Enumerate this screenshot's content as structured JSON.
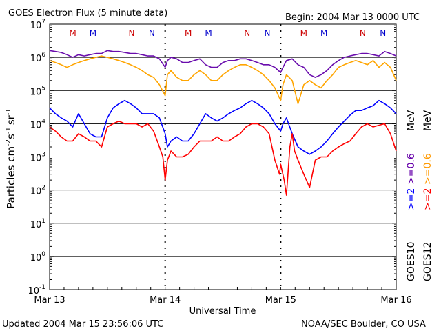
{
  "chart_data": {
    "type": "line",
    "title": "GOES Electron Flux (5 minute data)",
    "begin_label": "Begin: 2004 Mar 13 0000 UTC",
    "xlabel": "Universal Time",
    "ylabel_parts": {
      "base": "Particles cm",
      "e1": "-2",
      "mid1": "s",
      "e2": "-1",
      "mid2": "sr",
      "e3": "-1"
    },
    "updated": "Updated 2004 Mar 15 23:56:06 UTC",
    "credit": "NOAA/SEC Boulder, CO USA",
    "x_unit": "days since 2004 Mar 13 0000 UTC",
    "xlim": [
      0,
      3
    ],
    "x_ticks": [
      {
        "x": 0,
        "label": "Mar 13"
      },
      {
        "x": 1,
        "label": "Mar 14"
      },
      {
        "x": 2,
        "label": "Mar 15"
      },
      {
        "x": 3,
        "label": "Mar 16"
      }
    ],
    "y_scale": "log",
    "ylim_exp": [
      -1,
      7
    ],
    "y_tick_exps": [
      -1,
      0,
      1,
      2,
      3,
      4,
      5,
      6,
      7
    ],
    "threshold_exp": 3,
    "noon_markers": [
      {
        "label": "M",
        "x": 0.2,
        "color": "#cc0000"
      },
      {
        "label": "M",
        "x": 0.375,
        "color": "#0000cc"
      },
      {
        "label": "N",
        "x": 0.71,
        "color": "#cc0000"
      },
      {
        "label": "N",
        "x": 0.885,
        "color": "#0000cc"
      },
      {
        "label": "M",
        "x": 1.2,
        "color": "#cc0000"
      },
      {
        "label": "M",
        "x": 1.375,
        "color": "#0000cc"
      },
      {
        "label": "N",
        "x": 1.71,
        "color": "#cc0000"
      },
      {
        "label": "N",
        "x": 1.885,
        "color": "#0000cc"
      },
      {
        "label": "M",
        "x": 2.2,
        "color": "#cc0000"
      },
      {
        "label": "M",
        "x": 2.375,
        "color": "#0000cc"
      },
      {
        "label": "N",
        "x": 2.71,
        "color": "#cc0000"
      },
      {
        "label": "N",
        "x": 2.885,
        "color": "#0000cc"
      }
    ],
    "legend": {
      "goes10": "GOES10",
      "goes12": "GOES12",
      "g10_high": {
        "text": ">=2",
        "color": "#0000ff"
      },
      "g10_low": {
        "text": ">=0.6",
        "color": "#6600aa"
      },
      "g12_high": {
        "text": ">=2",
        "color": "#ff0000"
      },
      "g12_low": {
        "text": ">=0.6",
        "color": "#ff9900"
      },
      "unit": "MeV"
    },
    "series": [
      {
        "color": "#6a0dad",
        "x": [
          0,
          0.05,
          0.1,
          0.15,
          0.2,
          0.25,
          0.3,
          0.35,
          0.4,
          0.45,
          0.5,
          0.55,
          0.6,
          0.65,
          0.7,
          0.75,
          0.8,
          0.85,
          0.9,
          0.95,
          1.0,
          1.02,
          1.05,
          1.1,
          1.15,
          1.2,
          1.25,
          1.3,
          1.35,
          1.4,
          1.45,
          1.5,
          1.55,
          1.6,
          1.65,
          1.7,
          1.75,
          1.8,
          1.85,
          1.9,
          1.95,
          2.0,
          2.02,
          2.05,
          2.1,
          2.15,
          2.2,
          2.25,
          2.3,
          2.35,
          2.4,
          2.45,
          2.5,
          2.55,
          2.6,
          2.65,
          2.7,
          2.75,
          2.8,
          2.85,
          2.9,
          2.95,
          3.0
        ],
        "y": [
          1600000.0,
          1500000.0,
          1400000.0,
          1200000.0,
          1000000.0,
          1200000.0,
          1100000.0,
          1200000.0,
          1300000.0,
          1300000.0,
          1600000.0,
          1500000.0,
          1500000.0,
          1400000.0,
          1300000.0,
          1300000.0,
          1200000.0,
          1100000.0,
          1100000.0,
          900000.0,
          500000.0,
          800000.0,
          1000000.0,
          900000.0,
          700000.0,
          700000.0,
          800000.0,
          900000.0,
          600000.0,
          500000.0,
          500000.0,
          700000.0,
          800000.0,
          800000.0,
          900000.0,
          900000.0,
          800000.0,
          700000.0,
          600000.0,
          600000.0,
          500000.0,
          350000.0,
          500000.0,
          800000.0,
          900000.0,
          600000.0,
          500000.0,
          300000.0,
          250000.0,
          300000.0,
          400000.0,
          600000.0,
          800000.0,
          1000000.0,
          1100000.0,
          1200000.0,
          1300000.0,
          1300000.0,
          1200000.0,
          1100000.0,
          1500000.0,
          1300000.0,
          1100000.0
        ]
      },
      {
        "color": "#ffa500",
        "x": [
          0,
          0.05,
          0.1,
          0.15,
          0.2,
          0.25,
          0.3,
          0.35,
          0.4,
          0.45,
          0.5,
          0.55,
          0.6,
          0.65,
          0.7,
          0.75,
          0.8,
          0.85,
          0.9,
          0.95,
          1.0,
          1.02,
          1.05,
          1.1,
          1.15,
          1.2,
          1.25,
          1.3,
          1.35,
          1.4,
          1.45,
          1.5,
          1.55,
          1.6,
          1.65,
          1.7,
          1.75,
          1.8,
          1.85,
          1.9,
          1.95,
          2.0,
          2.02,
          2.05,
          2.1,
          2.15,
          2.2,
          2.25,
          2.3,
          2.35,
          2.4,
          2.45,
          2.5,
          2.55,
          2.6,
          2.65,
          2.7,
          2.75,
          2.8,
          2.85,
          2.9,
          2.95,
          3.0
        ],
        "y": [
          800000.0,
          700000.0,
          600000.0,
          500000.0,
          600000.0,
          700000.0,
          800000.0,
          900000.0,
          1000000.0,
          1100000.0,
          1000000.0,
          900000.0,
          800000.0,
          700000.0,
          600000.0,
          500000.0,
          400000.0,
          300000.0,
          250000.0,
          150000.0,
          70000.0,
          300000.0,
          400000.0,
          250000.0,
          200000.0,
          200000.0,
          300000.0,
          400000.0,
          300000.0,
          200000.0,
          200000.0,
          300000.0,
          400000.0,
          500000.0,
          600000.0,
          600000.0,
          500000.0,
          400000.0,
          300000.0,
          200000.0,
          120000.0,
          50000.0,
          150000.0,
          300000.0,
          200000.0,
          40000.0,
          150000.0,
          200000.0,
          150000.0,
          120000.0,
          200000.0,
          300000.0,
          500000.0,
          600000.0,
          700000.0,
          800000.0,
          700000.0,
          600000.0,
          800000.0,
          500000.0,
          700000.0,
          500000.0,
          200000.0
        ]
      },
      {
        "color": "#0000ff",
        "x": [
          0,
          0.05,
          0.1,
          0.15,
          0.2,
          0.25,
          0.3,
          0.35,
          0.4,
          0.45,
          0.5,
          0.55,
          0.6,
          0.65,
          0.7,
          0.75,
          0.8,
          0.85,
          0.9,
          0.95,
          1.0,
          1.02,
          1.05,
          1.1,
          1.15,
          1.2,
          1.25,
          1.3,
          1.35,
          1.4,
          1.45,
          1.5,
          1.55,
          1.6,
          1.65,
          1.7,
          1.75,
          1.8,
          1.85,
          1.9,
          1.95,
          2.0,
          2.02,
          2.05,
          2.1,
          2.15,
          2.2,
          2.25,
          2.3,
          2.35,
          2.4,
          2.45,
          2.5,
          2.55,
          2.6,
          2.65,
          2.7,
          2.75,
          2.8,
          2.85,
          2.9,
          2.95,
          3.0
        ],
        "y": [
          30000.0,
          20000.0,
          15000.0,
          12000.0,
          8000.0,
          20000.0,
          10000.0,
          5000.0,
          4000.0,
          4000.0,
          15000.0,
          30000.0,
          40000.0,
          50000.0,
          40000.0,
          30000.0,
          20000.0,
          20000.0,
          20000.0,
          15000.0,
          5000.0,
          2000.0,
          3000.0,
          4000.0,
          3000.0,
          3000.0,
          5000.0,
          10000.0,
          20000.0,
          15000.0,
          12000.0,
          15000.0,
          20000.0,
          25000.0,
          30000.0,
          40000.0,
          50000.0,
          40000.0,
          30000.0,
          20000.0,
          10000.0,
          6000.0,
          10000.0,
          15000.0,
          5000.0,
          2000.0,
          1500.0,
          1200.0,
          1500.0,
          2000.0,
          3000.0,
          5000.0,
          8000.0,
          12000.0,
          18000.0,
          25000.0,
          25000.0,
          30000.0,
          35000.0,
          50000.0,
          40000.0,
          30000.0,
          20000.0
        ]
      },
      {
        "color": "#ff0000",
        "x": [
          0,
          0.05,
          0.1,
          0.15,
          0.2,
          0.25,
          0.3,
          0.35,
          0.4,
          0.45,
          0.5,
          0.55,
          0.6,
          0.65,
          0.7,
          0.75,
          0.8,
          0.85,
          0.9,
          0.95,
          0.98,
          1.0,
          1.02,
          1.05,
          1.1,
          1.15,
          1.2,
          1.25,
          1.3,
          1.35,
          1.4,
          1.45,
          1.5,
          1.55,
          1.6,
          1.65,
          1.7,
          1.75,
          1.8,
          1.85,
          1.9,
          1.95,
          1.99,
          2.0,
          2.03,
          2.05,
          2.08,
          2.1,
          2.12,
          2.15,
          2.2,
          2.25,
          2.3,
          2.35,
          2.4,
          2.45,
          2.5,
          2.55,
          2.6,
          2.65,
          2.7,
          2.75,
          2.8,
          2.85,
          2.9,
          2.95,
          3.0
        ],
        "y": [
          8000.0,
          6000.0,
          4000.0,
          3000.0,
          3000.0,
          5000.0,
          4000.0,
          3000.0,
          3000.0,
          2000.0,
          8000.0,
          10000.0,
          12000.0,
          10000.0,
          10000.0,
          10000.0,
          8000.0,
          10000.0,
          6000.0,
          2000.0,
          1000.0,
          200.0,
          800.0,
          1500.0,
          1000.0,
          1000.0,
          1200.0,
          2000.0,
          3000.0,
          3000.0,
          3000.0,
          4000.0,
          3000.0,
          3000.0,
          4000.0,
          5000.0,
          8000.0,
          10000.0,
          10000.0,
          8000.0,
          5000.0,
          800.0,
          300.0,
          600.0,
          200.0,
          70.0,
          2000.0,
          5000.0,
          1500.0,
          800.0,
          300.0,
          120.0,
          800.0,
          1000.0,
          1000.0,
          1500.0,
          2000.0,
          2500.0,
          3000.0,
          5000.0,
          8000.0,
          10000.0,
          8000.0,
          9000.0,
          10000.0,
          5000.0,
          1500.0
        ]
      }
    ]
  }
}
